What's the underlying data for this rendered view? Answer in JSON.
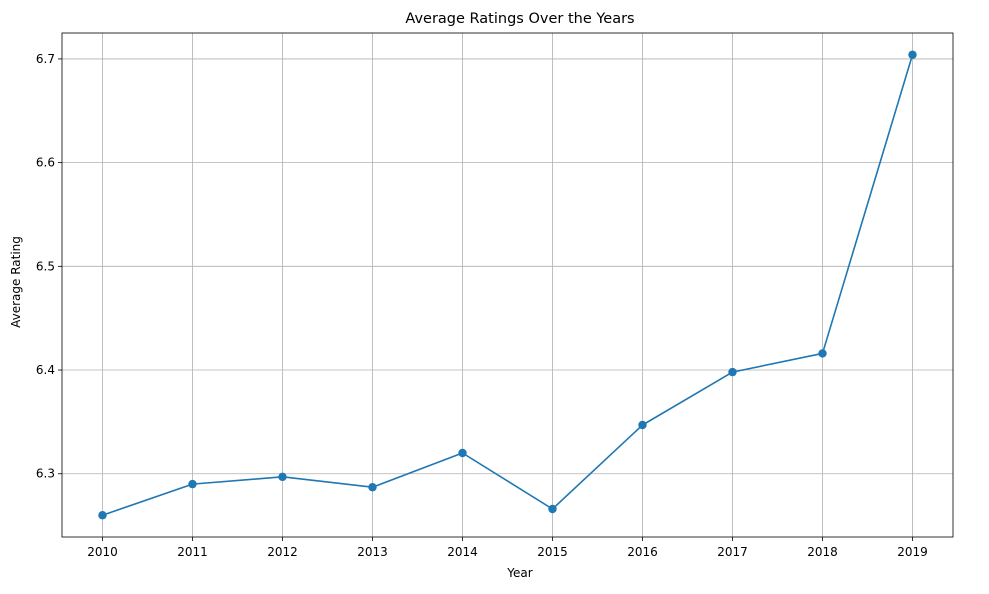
{
  "chart_data": {
    "type": "line",
    "title": "Average Ratings Over the Years",
    "xlabel": "Year",
    "ylabel": "Average Rating",
    "x": [
      2010,
      2011,
      2012,
      2013,
      2014,
      2015,
      2016,
      2017,
      2018,
      2019
    ],
    "x_tick_labels": [
      "2010",
      "2011",
      "2012",
      "2013",
      "2014",
      "2015",
      "2016",
      "2017",
      "2018",
      "2019"
    ],
    "series": [
      {
        "values": [
          6.26,
          6.29,
          6.297,
          6.287,
          6.32,
          6.266,
          6.347,
          6.398,
          6.416,
          6.704
        ],
        "color": "#1f77b4",
        "marker": "circle"
      }
    ],
    "ylim": [
      6.239,
      6.725
    ],
    "xlim": [
      2009.55,
      2019.45
    ],
    "y_ticks": [
      6.3,
      6.4,
      6.5,
      6.6,
      6.7
    ],
    "y_tick_labels": [
      "6.3",
      "6.4",
      "6.5",
      "6.6",
      "6.7"
    ],
    "grid": true,
    "legend": "none"
  }
}
